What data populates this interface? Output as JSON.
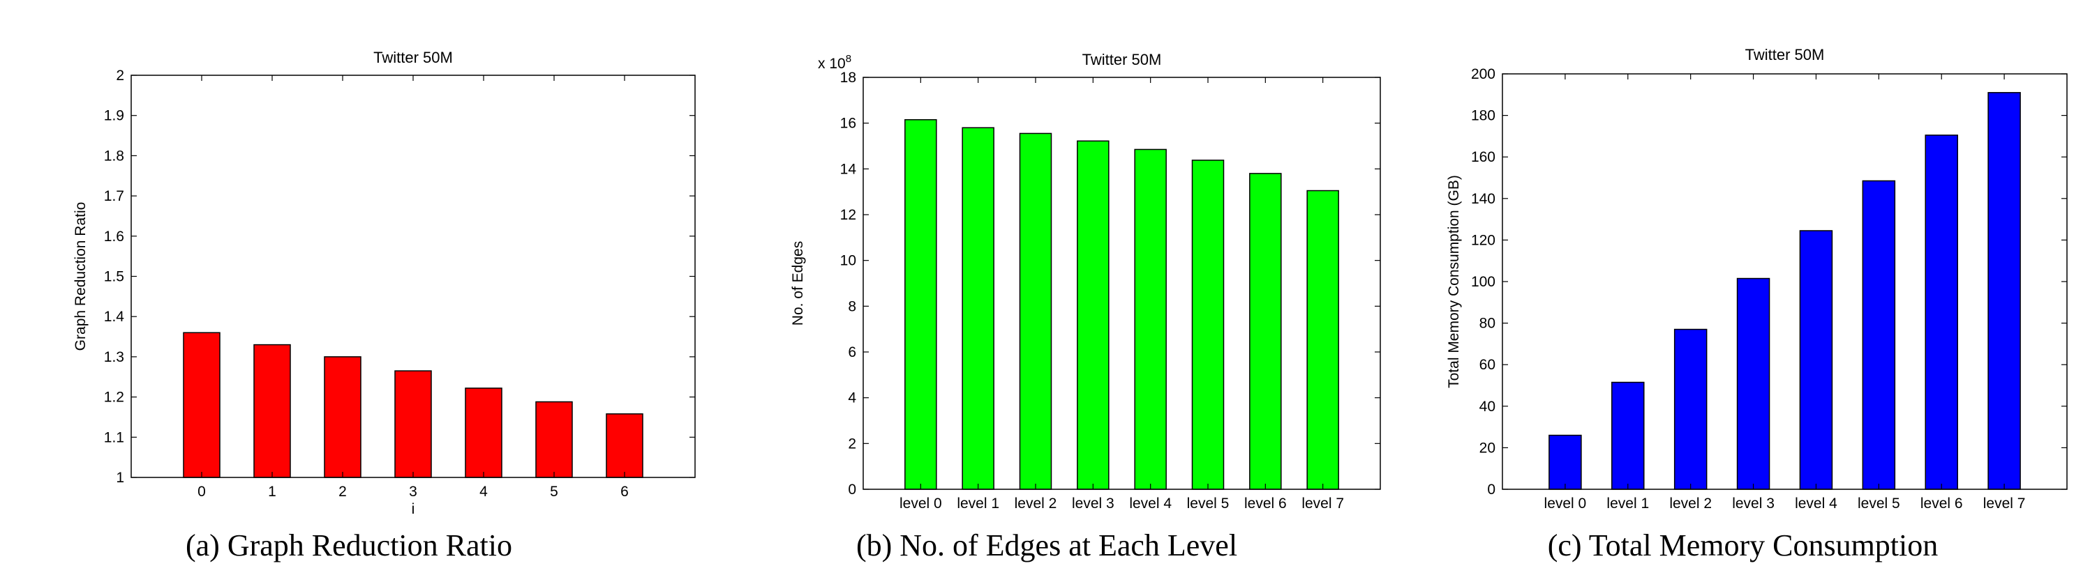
{
  "chart_data": [
    {
      "type": "bar",
      "title": "Twitter 50M",
      "xlabel": "i",
      "ylabel": "Graph Reduction Ratio",
      "categories": [
        "0",
        "1",
        "2",
        "3",
        "4",
        "5",
        "6"
      ],
      "values": [
        1.36,
        1.33,
        1.3,
        1.265,
        1.222,
        1.188,
        1.158
      ],
      "ylim": [
        1,
        2
      ],
      "yticks": [
        "1",
        "1.1",
        "1.2",
        "1.3",
        "1.4",
        "1.5",
        "1.6",
        "1.7",
        "1.8",
        "1.9",
        "2"
      ],
      "xlim": [
        -1,
        7
      ],
      "bar_color": "#ff0000",
      "y_multiplier": "",
      "caption": "(a) Graph Reduction Ratio"
    },
    {
      "type": "bar",
      "title": "Twitter 50M",
      "xlabel": "",
      "ylabel": "No. of Edges",
      "categories": [
        "level 0",
        "level 1",
        "level 2",
        "level 3",
        "level 4",
        "level 5",
        "level 6",
        "level 7"
      ],
      "values": [
        16.15,
        15.8,
        15.55,
        15.22,
        14.85,
        14.38,
        13.8,
        13.05
      ],
      "ylim": [
        0,
        18
      ],
      "yticks": [
        "0",
        "2",
        "4",
        "6",
        "8",
        "10",
        "12",
        "14",
        "16",
        "18"
      ],
      "xlim": [
        0,
        9
      ],
      "bar_color": "#00ff00",
      "y_multiplier": "x 10",
      "y_multiplier_exp": "8",
      "caption": "(b) No. of Edges at Each Level"
    },
    {
      "type": "bar",
      "title": "Twitter 50M",
      "xlabel": "",
      "ylabel": "Total Memory Consumption (GB)",
      "categories": [
        "level 0",
        "level 1",
        "level 2",
        "level 3",
        "level 4",
        "level 5",
        "level 6",
        "level 7"
      ],
      "values": [
        26,
        51.5,
        77,
        101.5,
        124.5,
        148.5,
        170.5,
        191
      ],
      "ylim": [
        0,
        200
      ],
      "yticks": [
        "0",
        "20",
        "40",
        "60",
        "80",
        "100",
        "120",
        "140",
        "160",
        "180",
        "200"
      ],
      "xlim": [
        0,
        9
      ],
      "bar_color": "#0000ff",
      "y_multiplier": "",
      "caption": "(c) Total Memory Consumption"
    }
  ]
}
